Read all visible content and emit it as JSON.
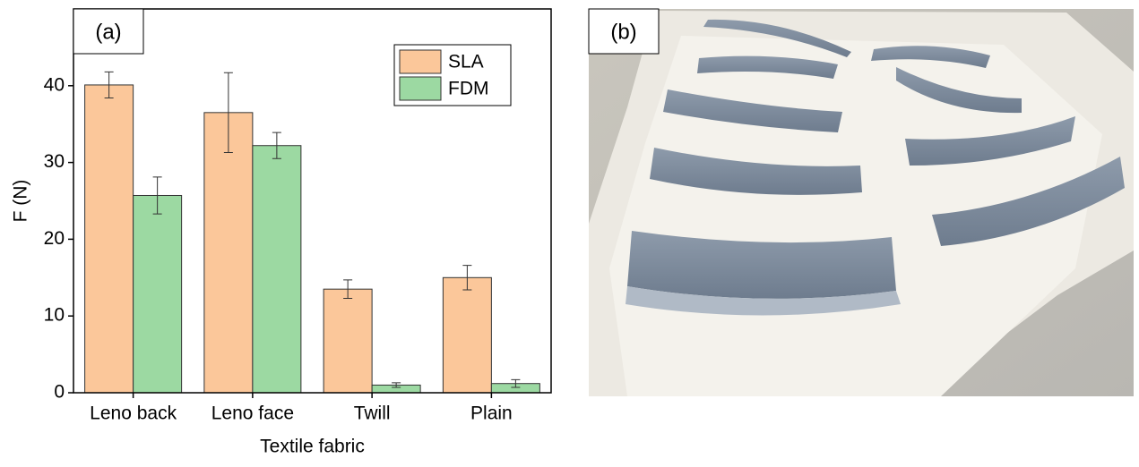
{
  "chart_data": {
    "type": "bar",
    "panel_label": "(a)",
    "x_label": "Textile fabric",
    "y_label": "F (N)",
    "categories": [
      "Leno back",
      "Leno face",
      "Twill",
      "Plain"
    ],
    "series": [
      {
        "name": "SLA",
        "color": "#fbc79a",
        "values": [
          40.1,
          36.5,
          13.5,
          15.0
        ],
        "errors": [
          1.7,
          5.2,
          1.2,
          1.6
        ]
      },
      {
        "name": "FDM",
        "color": "#9cd9a2",
        "values": [
          25.7,
          32.2,
          1.0,
          1.2
        ],
        "errors": [
          2.4,
          1.7,
          0.3,
          0.5
        ]
      }
    ],
    "ylim": [
      0,
      50
    ],
    "yticks": [
      0,
      10,
      20,
      30,
      40
    ],
    "legend": "upper right"
  },
  "photo_panel": {
    "label": "(b)"
  }
}
